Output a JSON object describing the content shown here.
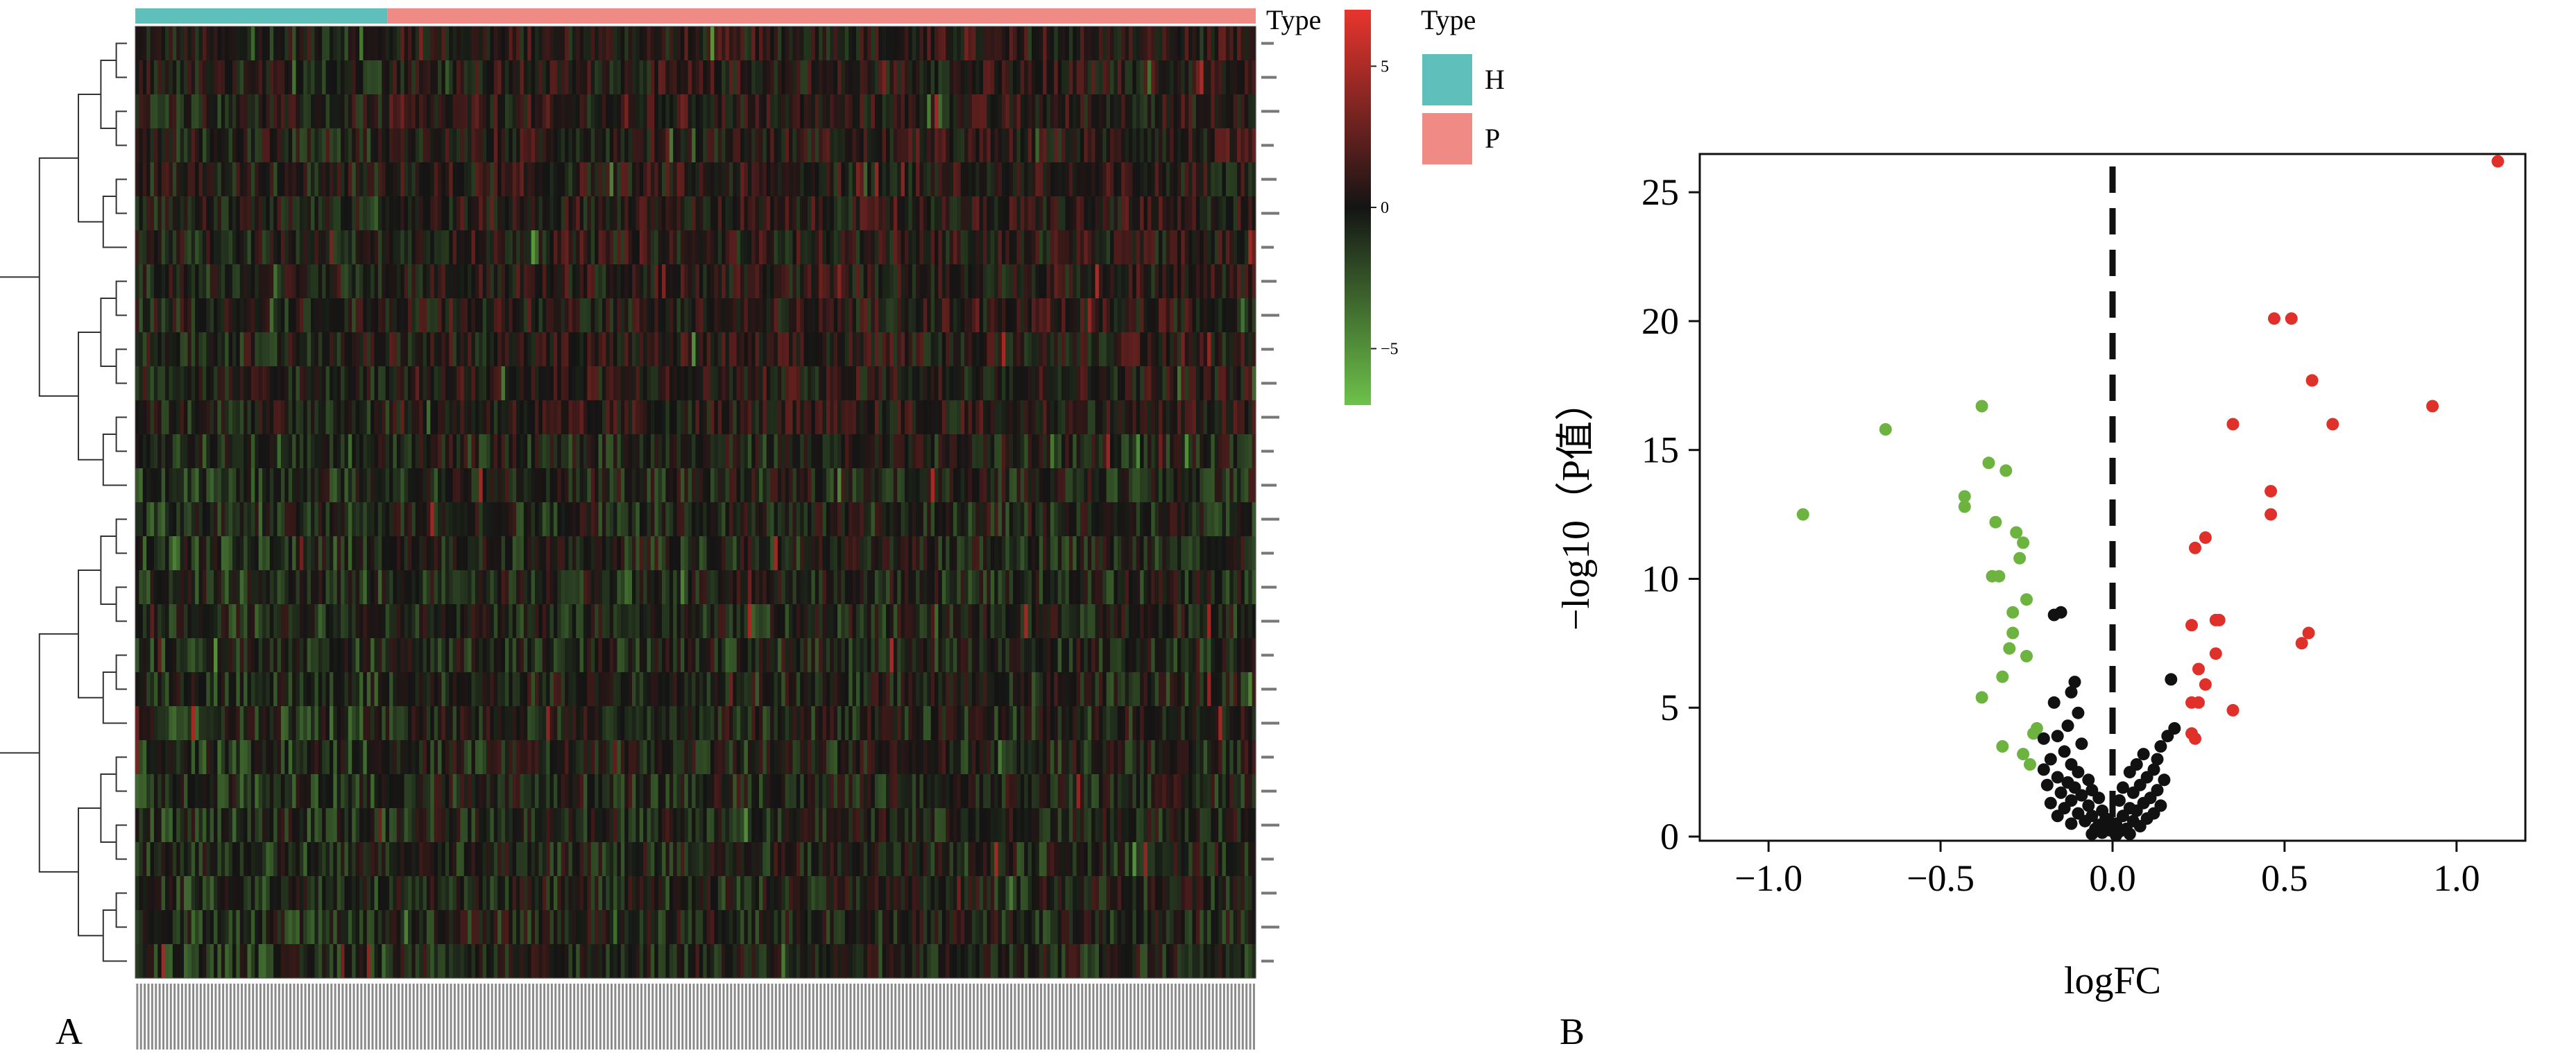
{
  "chart_data": [
    {
      "panel": "A",
      "type": "heatmap",
      "title": "",
      "annotation_title": "Type",
      "legend_title": "Type",
      "groups": [
        {
          "name": "H",
          "color": "#5fbfbb",
          "fraction": 0.225
        },
        {
          "name": "P",
          "color": "#f08a84",
          "fraction": 0.775
        }
      ],
      "colorbar": {
        "min": -7,
        "max": 7,
        "ticks": [
          5,
          0,
          -5
        ],
        "tick_labels": [
          "5",
          "0",
          "−5"
        ],
        "colors": {
          "high": "#e8352e",
          "mid": "#141414",
          "low": "#6dc24a"
        }
      },
      "n_genes": 28,
      "dendrogram": "rows",
      "row_labels_visible": "tiny (illegible)",
      "column_labels_visible": "tiny (illegible)"
    },
    {
      "panel": "B",
      "type": "scatter",
      "title": "",
      "xlabel": "logFC",
      "ylabel": "−log10（P值）",
      "xlim": [
        -1.2,
        1.2
      ],
      "ylim": [
        0,
        26
      ],
      "xticks": [
        -1.0,
        -0.5,
        0.0,
        0.5,
        1.0
      ],
      "xtick_labels": [
        "−1.0",
        "−0.5",
        "0.0",
        "0.5",
        "1.0"
      ],
      "yticks": [
        0,
        5,
        10,
        15,
        20,
        25
      ],
      "ytick_labels": [
        "0",
        "5",
        "10",
        "15",
        "20",
        "25"
      ],
      "vline": 0,
      "colors": {
        "down": "#6db33f",
        "ns": "#111111",
        "up": "#e0302a"
      },
      "series": [
        {
          "key": "down",
          "points": [
            [
              -0.9,
              12.5
            ],
            [
              -0.66,
              15.8
            ],
            [
              -0.38,
              16.7
            ],
            [
              -0.43,
              13.2
            ],
            [
              -0.43,
              12.8
            ],
            [
              -0.36,
              14.5
            ],
            [
              -0.31,
              14.2
            ],
            [
              -0.34,
              12.2
            ],
            [
              -0.28,
              11.8
            ],
            [
              -0.26,
              11.4
            ],
            [
              -0.27,
              10.8
            ],
            [
              -0.35,
              10.1
            ],
            [
              -0.33,
              10.1
            ],
            [
              -0.25,
              9.2
            ],
            [
              -0.29,
              8.7
            ],
            [
              -0.29,
              7.9
            ],
            [
              -0.3,
              7.3
            ],
            [
              -0.25,
              7.0
            ],
            [
              -0.32,
              6.2
            ],
            [
              -0.38,
              5.4
            ],
            [
              -0.22,
              4.2
            ],
            [
              -0.23,
              4.0
            ],
            [
              -0.32,
              3.5
            ],
            [
              -0.26,
              3.2
            ],
            [
              -0.24,
              2.8
            ]
          ]
        },
        {
          "key": "up",
          "points": [
            [
              1.12,
              26.2
            ],
            [
              0.47,
              20.1
            ],
            [
              0.52,
              20.1
            ],
            [
              0.58,
              17.7
            ],
            [
              0.93,
              16.7
            ],
            [
              0.35,
              16.0
            ],
            [
              0.64,
              16.0
            ],
            [
              0.46,
              13.4
            ],
            [
              0.46,
              12.5
            ],
            [
              0.27,
              11.6
            ],
            [
              0.24,
              11.2
            ],
            [
              0.31,
              8.4
            ],
            [
              0.3,
              8.4
            ],
            [
              0.23,
              8.2
            ],
            [
              0.57,
              7.9
            ],
            [
              0.55,
              7.5
            ],
            [
              0.3,
              7.1
            ],
            [
              0.25,
              6.5
            ],
            [
              0.27,
              5.9
            ],
            [
              0.23,
              5.2
            ],
            [
              0.25,
              5.2
            ],
            [
              0.35,
              4.9
            ],
            [
              0.23,
              4.0
            ],
            [
              0.24,
              3.8
            ]
          ]
        },
        {
          "key": "ns",
          "points": [
            [
              -0.15,
              8.7
            ],
            [
              -0.17,
              8.6
            ],
            [
              -0.11,
              6.0
            ],
            [
              -0.12,
              5.6
            ],
            [
              -0.17,
              5.2
            ],
            [
              -0.1,
              4.8
            ],
            [
              -0.13,
              4.3
            ],
            [
              -0.16,
              3.9
            ],
            [
              -0.2,
              3.8
            ],
            [
              -0.09,
              3.6
            ],
            [
              -0.14,
              3.3
            ],
            [
              -0.18,
              3.0
            ],
            [
              -0.12,
              2.8
            ],
            [
              -0.2,
              2.6
            ],
            [
              -0.1,
              2.5
            ],
            [
              -0.16,
              2.3
            ],
            [
              -0.07,
              2.2
            ],
            [
              -0.13,
              2.1
            ],
            [
              -0.19,
              2.0
            ],
            [
              -0.11,
              1.9
            ],
            [
              -0.06,
              1.8
            ],
            [
              -0.15,
              1.7
            ],
            [
              -0.09,
              1.6
            ],
            [
              -0.04,
              1.5
            ],
            [
              -0.12,
              1.4
            ],
            [
              -0.18,
              1.3
            ],
            [
              -0.07,
              1.2
            ],
            [
              -0.14,
              1.1
            ],
            [
              -0.03,
              1.0
            ],
            [
              -0.1,
              0.9
            ],
            [
              -0.06,
              0.8
            ],
            [
              -0.16,
              0.8
            ],
            [
              -0.02,
              0.7
            ],
            [
              -0.08,
              0.6
            ],
            [
              -0.12,
              0.5
            ],
            [
              -0.04,
              0.45
            ],
            [
              -0.05,
              0.3
            ],
            [
              -0.01,
              0.25
            ],
            [
              -0.03,
              0.15
            ],
            [
              -0.06,
              0.1
            ],
            [
              0.17,
              6.1
            ],
            [
              0.18,
              4.2
            ],
            [
              0.16,
              3.9
            ],
            [
              0.14,
              3.5
            ],
            [
              0.09,
              3.2
            ],
            [
              0.13,
              3.0
            ],
            [
              0.07,
              2.8
            ],
            [
              0.12,
              2.6
            ],
            [
              0.05,
              2.5
            ],
            [
              0.1,
              2.3
            ],
            [
              0.15,
              2.2
            ],
            [
              0.08,
              2.0
            ],
            [
              0.03,
              1.9
            ],
            [
              0.13,
              1.8
            ],
            [
              0.06,
              1.7
            ],
            [
              0.11,
              1.5
            ],
            [
              0.02,
              1.4
            ],
            [
              0.09,
              1.3
            ],
            [
              0.14,
              1.2
            ],
            [
              0.05,
              1.1
            ],
            [
              0.07,
              1.0
            ],
            [
              0.12,
              0.9
            ],
            [
              0.03,
              0.8
            ],
            [
              0.1,
              0.7
            ],
            [
              0.06,
              0.6
            ],
            [
              0.01,
              0.5
            ],
            [
              0.08,
              0.4
            ],
            [
              0.04,
              0.3
            ],
            [
              0.02,
              0.2
            ],
            [
              0.05,
              0.1
            ],
            [
              0.01,
              0.05
            ],
            [
              -0.01,
              0.6
            ]
          ]
        }
      ]
    }
  ],
  "panel_labels": {
    "a": "A",
    "b": "B"
  }
}
